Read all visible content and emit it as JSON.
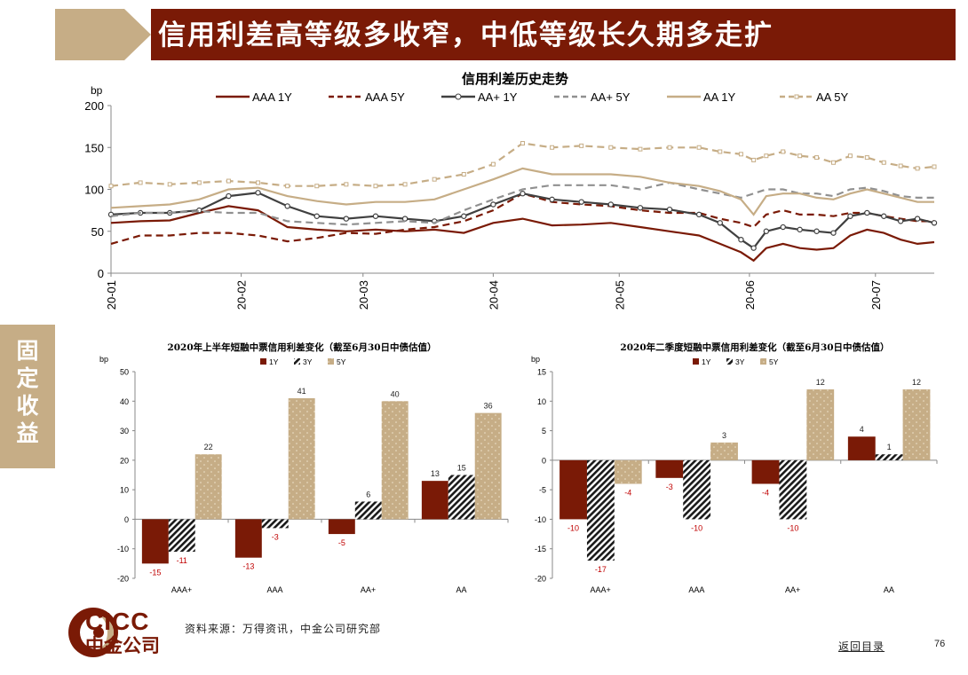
{
  "header": {
    "title": "信用利差高等级多收窄，中低等级长久期多走扩"
  },
  "side_tab": {
    "label": "固定收益"
  },
  "footer": {
    "source": "资料来源：万得资讯，中金公司研究部",
    "back_link": "返回目录",
    "page_number": "76"
  },
  "logo": {
    "en": "CICC",
    "cn": "中金公司"
  },
  "colors": {
    "brand": "#7a1a06",
    "tan": "#c6ad86",
    "dark": "#404040"
  },
  "chart_data": [
    {
      "type": "line",
      "title": "信用利差历史走势",
      "ylabel": "bp",
      "ylim": [
        0,
        200
      ],
      "yticks": [
        0,
        50,
        100,
        150,
        200
      ],
      "x_tick_labels": [
        "20-01",
        "20-02",
        "20-03",
        "20-04",
        "20-05",
        "20-06",
        "20-07"
      ],
      "x_tick_days": [
        0,
        31,
        60,
        91,
        121,
        152,
        182
      ],
      "x_range_days": [
        0,
        196
      ],
      "x": [
        0,
        7,
        14,
        21,
        28,
        35,
        42,
        49,
        56,
        63,
        70,
        77,
        84,
        91,
        98,
        105,
        112,
        119,
        126,
        133,
        140,
        145,
        150,
        153,
        156,
        160,
        164,
        168,
        172,
        176,
        180,
        184,
        188,
        192,
        196
      ],
      "legend_position": "top",
      "series": [
        {
          "name": "AAA 1Y",
          "style": "solid",
          "color": "#7a1a06",
          "marker": "none",
          "values": [
            60,
            62,
            63,
            72,
            80,
            75,
            55,
            52,
            50,
            52,
            50,
            52,
            48,
            60,
            65,
            57,
            58,
            60,
            55,
            50,
            45,
            35,
            25,
            15,
            30,
            35,
            30,
            28,
            30,
            45,
            52,
            48,
            40,
            35,
            37
          ]
        },
        {
          "name": "AAA 5Y",
          "style": "dash",
          "color": "#7a1a06",
          "marker": "none",
          "values": [
            35,
            45,
            45,
            48,
            48,
            45,
            38,
            42,
            48,
            47,
            52,
            55,
            62,
            75,
            95,
            85,
            82,
            80,
            75,
            72,
            72,
            65,
            60,
            55,
            70,
            75,
            70,
            70,
            68,
            72,
            72,
            68,
            65,
            62,
            62
          ]
        },
        {
          "name": "AA+ 1Y",
          "style": "solid",
          "color": "#404040",
          "marker": "circle",
          "values": [
            70,
            72,
            72,
            75,
            92,
            96,
            80,
            68,
            65,
            68,
            65,
            62,
            68,
            82,
            95,
            88,
            85,
            82,
            78,
            76,
            70,
            60,
            40,
            30,
            50,
            55,
            52,
            50,
            48,
            68,
            72,
            68,
            62,
            65,
            60
          ]
        },
        {
          "name": "AA+ 5Y",
          "style": "dash",
          "color": "#909090",
          "marker": "none",
          "values": [
            68,
            72,
            72,
            74,
            72,
            72,
            62,
            60,
            58,
            60,
            62,
            60,
            75,
            88,
            100,
            105,
            105,
            105,
            100,
            108,
            100,
            95,
            90,
            95,
            100,
            100,
            95,
            95,
            92,
            100,
            102,
            98,
            92,
            90,
            90
          ]
        },
        {
          "name": "AA 1Y",
          "style": "solid",
          "color": "#c6ad86",
          "marker": "none",
          "values": [
            78,
            80,
            82,
            88,
            100,
            102,
            92,
            86,
            82,
            85,
            85,
            88,
            100,
            112,
            125,
            118,
            118,
            118,
            115,
            108,
            104,
            98,
            88,
            70,
            92,
            95,
            95,
            90,
            88,
            95,
            100,
            95,
            90,
            85,
            85
          ]
        },
        {
          "name": "AA 5Y",
          "style": "dash",
          "color": "#c6ad86",
          "marker": "square",
          "values": [
            104,
            108,
            106,
            108,
            110,
            108,
            104,
            104,
            106,
            104,
            106,
            112,
            118,
            130,
            155,
            150,
            152,
            150,
            148,
            150,
            150,
            145,
            142,
            135,
            140,
            145,
            140,
            138,
            132,
            140,
            138,
            132,
            128,
            125,
            127
          ]
        }
      ]
    },
    {
      "type": "bar",
      "title": "2020年上半年短融中票信用利差变化（截至6月30日中债估值）",
      "ylabel": "bp",
      "ylim": [
        -20,
        50
      ],
      "yticks": [
        -20,
        -10,
        0,
        10,
        20,
        30,
        40,
        50
      ],
      "categories": [
        "AAA+",
        "AAA",
        "AA+",
        "AA"
      ],
      "series": [
        {
          "name": "1Y",
          "values": [
            -15,
            -13,
            -5,
            13
          ]
        },
        {
          "name": "3Y",
          "values": [
            -11,
            -3,
            6,
            15
          ]
        },
        {
          "name": "5Y",
          "values": [
            22,
            41,
            40,
            36
          ]
        }
      ]
    },
    {
      "type": "bar",
      "title": "2020年二季度短融中票信用利差变化（截至6月30日中债估值）",
      "ylabel": "bp",
      "ylim": [
        -20,
        15
      ],
      "yticks": [
        -20,
        -15,
        -10,
        -5,
        0,
        5,
        10,
        15
      ],
      "categories": [
        "AAA+",
        "AAA",
        "AA+",
        "AA"
      ],
      "series": [
        {
          "name": "1Y",
          "values": [
            -10,
            -3,
            -4,
            4
          ]
        },
        {
          "name": "3Y",
          "values": [
            -17,
            -10,
            -10,
            1
          ]
        },
        {
          "name": "5Y",
          "values": [
            -4,
            3,
            12,
            12
          ]
        }
      ]
    }
  ]
}
